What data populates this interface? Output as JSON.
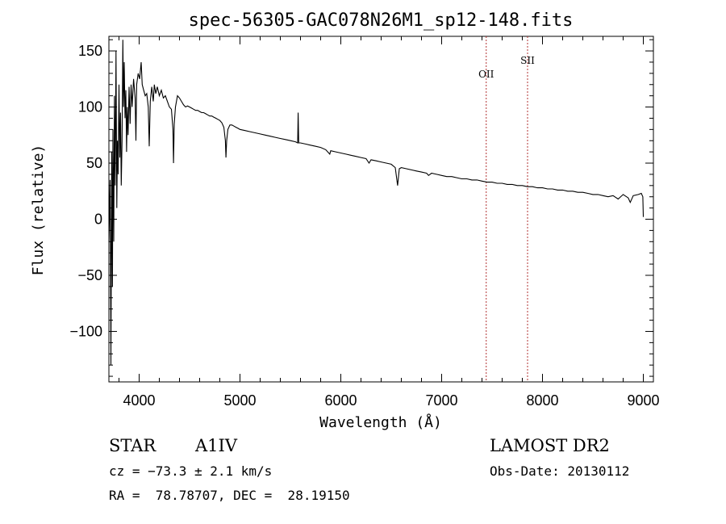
{
  "chart_data": {
    "type": "line",
    "title": "spec-56305-GAC078N26M1_sp12-148.fits",
    "xlabel": "Wavelength (Å)",
    "ylabel": "Flux (relative)",
    "xlim": [
      3700,
      9100
    ],
    "ylim": [
      -145,
      163
    ],
    "xticks": [
      4000,
      5000,
      6000,
      7000,
      8000,
      9000
    ],
    "yticks": [
      -100,
      -50,
      0,
      50,
      100,
      150
    ],
    "grid": false,
    "line_color": "#000000",
    "marker_color": "#b03030",
    "series": [
      {
        "points": [
          [
            3700,
            -20
          ],
          [
            3712,
            35
          ],
          [
            3720,
            -130
          ],
          [
            3728,
            60
          ],
          [
            3735,
            -60
          ],
          [
            3740,
            80
          ],
          [
            3748,
            -20
          ],
          [
            3755,
            110
          ],
          [
            3762,
            30
          ],
          [
            3770,
            150
          ],
          [
            3778,
            10
          ],
          [
            3785,
            70
          ],
          [
            3792,
            40
          ],
          [
            3800,
            120
          ],
          [
            3808,
            55
          ],
          [
            3815,
            95
          ],
          [
            3822,
            30
          ],
          [
            3830,
            70
          ],
          [
            3838,
            160
          ],
          [
            3845,
            100
          ],
          [
            3852,
            140
          ],
          [
            3860,
            90
          ],
          [
            3868,
            115
          ],
          [
            3875,
            60
          ],
          [
            3882,
            100
          ],
          [
            3890,
            75
          ],
          [
            3900,
            118
          ],
          [
            3910,
            85
          ],
          [
            3920,
            120
          ],
          [
            3930,
            100
          ],
          [
            3945,
            125
          ],
          [
            3960,
            108
          ],
          [
            3968,
            70
          ],
          [
            3975,
            120
          ],
          [
            3990,
            130
          ],
          [
            4005,
            125
          ],
          [
            4020,
            140
          ],
          [
            4030,
            120
          ],
          [
            4045,
            115
          ],
          [
            4060,
            110
          ],
          [
            4075,
            112
          ],
          [
            4090,
            100
          ],
          [
            4100,
            65
          ],
          [
            4110,
            105
          ],
          [
            4125,
            118
          ],
          [
            4140,
            105
          ],
          [
            4150,
            120
          ],
          [
            4165,
            112
          ],
          [
            4180,
            118
          ],
          [
            4200,
            110
          ],
          [
            4220,
            115
          ],
          [
            4240,
            108
          ],
          [
            4260,
            110
          ],
          [
            4280,
            105
          ],
          [
            4300,
            100
          ],
          [
            4320,
            98
          ],
          [
            4335,
            80
          ],
          [
            4341,
            50
          ],
          [
            4348,
            85
          ],
          [
            4360,
            100
          ],
          [
            4380,
            110
          ],
          [
            4400,
            108
          ],
          [
            4420,
            105
          ],
          [
            4440,
            102
          ],
          [
            4460,
            100
          ],
          [
            4480,
            101
          ],
          [
            4500,
            100
          ],
          [
            4520,
            99
          ],
          [
            4540,
            98
          ],
          [
            4560,
            97
          ],
          [
            4580,
            97
          ],
          [
            4600,
            96
          ],
          [
            4620,
            95
          ],
          [
            4640,
            95
          ],
          [
            4660,
            94
          ],
          [
            4680,
            93
          ],
          [
            4700,
            92
          ],
          [
            4720,
            92
          ],
          [
            4740,
            91
          ],
          [
            4760,
            90
          ],
          [
            4780,
            89
          ],
          [
            4800,
            88
          ],
          [
            4820,
            86
          ],
          [
            4840,
            82
          ],
          [
            4855,
            70
          ],
          [
            4861,
            55
          ],
          [
            4868,
            70
          ],
          [
            4880,
            80
          ],
          [
            4900,
            84
          ],
          [
            4920,
            84
          ],
          [
            4940,
            83
          ],
          [
            4960,
            82
          ],
          [
            4980,
            81
          ],
          [
            5000,
            80
          ],
          [
            5050,
            79
          ],
          [
            5100,
            78
          ],
          [
            5150,
            77
          ],
          [
            5200,
            76
          ],
          [
            5250,
            75
          ],
          [
            5300,
            74
          ],
          [
            5350,
            73
          ],
          [
            5400,
            72
          ],
          [
            5450,
            71
          ],
          [
            5500,
            70
          ],
          [
            5550,
            69
          ],
          [
            5572,
            68
          ],
          [
            5577,
            95
          ],
          [
            5582,
            68
          ],
          [
            5600,
            68
          ],
          [
            5650,
            67
          ],
          [
            5700,
            66
          ],
          [
            5750,
            65
          ],
          [
            5800,
            64
          ],
          [
            5850,
            62
          ],
          [
            5890,
            58
          ],
          [
            5900,
            61
          ],
          [
            5950,
            60
          ],
          [
            6000,
            59
          ],
          [
            6050,
            58
          ],
          [
            6100,
            57
          ],
          [
            6150,
            56
          ],
          [
            6200,
            55
          ],
          [
            6250,
            54
          ],
          [
            6280,
            50
          ],
          [
            6300,
            53
          ],
          [
            6350,
            52
          ],
          [
            6400,
            51
          ],
          [
            6450,
            50
          ],
          [
            6500,
            49
          ],
          [
            6540,
            46
          ],
          [
            6563,
            30
          ],
          [
            6580,
            45
          ],
          [
            6600,
            46
          ],
          [
            6650,
            45
          ],
          [
            6700,
            44
          ],
          [
            6750,
            43
          ],
          [
            6800,
            42
          ],
          [
            6850,
            41
          ],
          [
            6870,
            39
          ],
          [
            6900,
            41
          ],
          [
            6950,
            40
          ],
          [
            7000,
            39
          ],
          [
            7050,
            38
          ],
          [
            7100,
            38
          ],
          [
            7150,
            37
          ],
          [
            7200,
            36
          ],
          [
            7250,
            36
          ],
          [
            7300,
            35
          ],
          [
            7350,
            35
          ],
          [
            7400,
            34
          ],
          [
            7450,
            33
          ],
          [
            7500,
            33
          ],
          [
            7550,
            32
          ],
          [
            7600,
            32
          ],
          [
            7650,
            31
          ],
          [
            7700,
            31
          ],
          [
            7750,
            30
          ],
          [
            7800,
            30
          ],
          [
            7850,
            29
          ],
          [
            7900,
            29
          ],
          [
            7950,
            28
          ],
          [
            8000,
            28
          ],
          [
            8050,
            27
          ],
          [
            8100,
            27
          ],
          [
            8150,
            26
          ],
          [
            8200,
            26
          ],
          [
            8250,
            25
          ],
          [
            8300,
            25
          ],
          [
            8350,
            24
          ],
          [
            8400,
            24
          ],
          [
            8450,
            23
          ],
          [
            8500,
            22
          ],
          [
            8550,
            22
          ],
          [
            8600,
            21
          ],
          [
            8650,
            20
          ],
          [
            8700,
            21
          ],
          [
            8750,
            18
          ],
          [
            8800,
            22
          ],
          [
            8850,
            19
          ],
          [
            8870,
            15
          ],
          [
            8900,
            21
          ],
          [
            8950,
            22
          ],
          [
            8980,
            23
          ],
          [
            8995,
            20
          ],
          [
            9000,
            2
          ]
        ]
      }
    ],
    "lines": [
      {
        "label": "OII",
        "x": 7442
      },
      {
        "label": "SII",
        "x": 7852
      }
    ]
  },
  "info": {
    "object_class": "STAR",
    "subclass": "A1IV",
    "survey": "LAMOST DR2",
    "cz_text": "cz = −73.3 ± 2.1 km/s",
    "obs_date": "Obs-Date: 20130112",
    "coords_text": "RA =  78.78707, DEC =  28.19150"
  }
}
